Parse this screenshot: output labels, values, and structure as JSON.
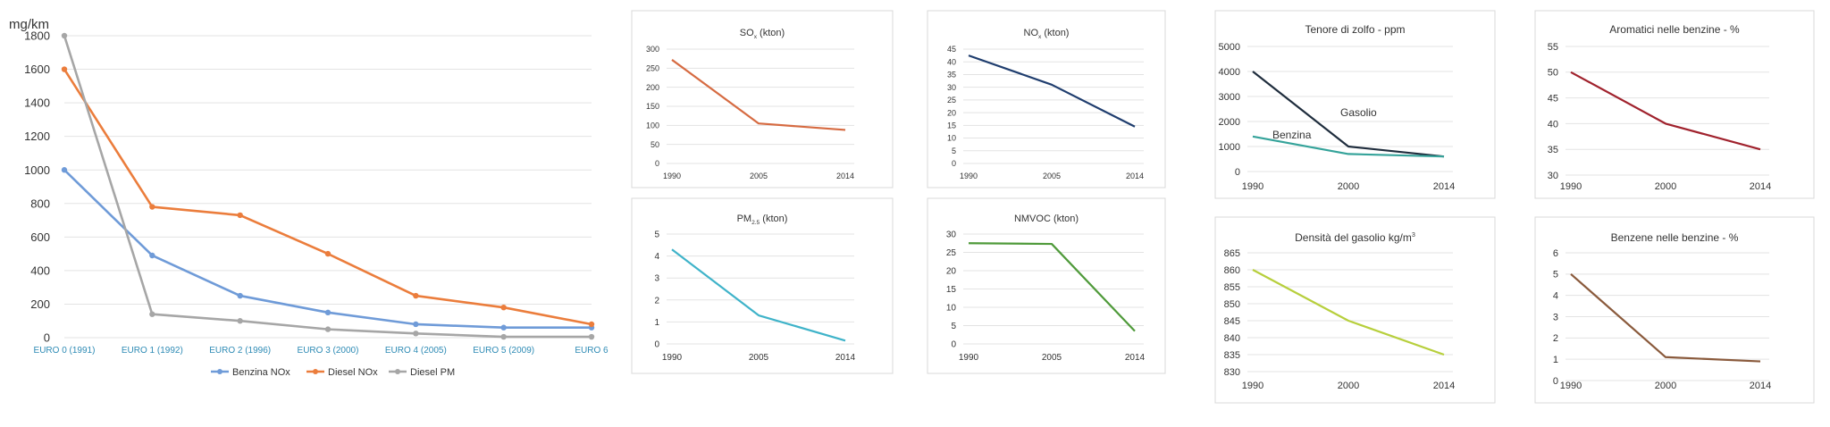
{
  "chart_data": [
    {
      "id": "euro",
      "type": "line",
      "title": "",
      "ylabel": "mg/km",
      "ylim": [
        0,
        1800
      ],
      "yticks": [
        0,
        200,
        400,
        600,
        800,
        1000,
        1200,
        1400,
        1600,
        1800
      ],
      "categories": [
        "EURO 0 (1991)",
        "EURO 1 (1992)",
        "EURO 2 (1996)",
        "EURO 3 (2000)",
        "EURO 4 (2005)",
        "EURO 5 (2009)",
        "EURO 6"
      ],
      "legend_position": "bottom",
      "grid": true,
      "series": [
        {
          "name": "Benzina NOx",
          "color": "#6f9bd8",
          "values": [
            1000,
            490,
            250,
            150,
            80,
            60,
            60
          ]
        },
        {
          "name": "Diesel NOx",
          "color": "#eb7d3c",
          "values": [
            1600,
            780,
            730,
            500,
            250,
            180,
            80
          ]
        },
        {
          "name": "Diesel PM",
          "color": "#a6a6a6",
          "values": [
            1800,
            140,
            100,
            50,
            25,
            5,
            5
          ]
        }
      ]
    },
    {
      "id": "so",
      "type": "line",
      "title": "SO",
      "title_sub": "x",
      "title_suffix": " (kton)",
      "ylim": [
        0,
        300
      ],
      "yticks": [
        0,
        50,
        100,
        150,
        200,
        250,
        300
      ],
      "categories": [
        "1990",
        "2005",
        "2014"
      ],
      "grid": true,
      "series": [
        {
          "color": "#d66b42",
          "values": [
            272,
            105,
            88
          ]
        }
      ]
    },
    {
      "id": "no",
      "type": "line",
      "title": "NO",
      "title_sub": "x",
      "title_suffix": " (kton)",
      "ylim": [
        0,
        45
      ],
      "yticks": [
        0,
        5,
        10,
        15,
        20,
        25,
        30,
        35,
        40,
        45
      ],
      "categories": [
        "1990",
        "2005",
        "2014"
      ],
      "grid": true,
      "series": [
        {
          "color": "#1f3d6e",
          "values": [
            42.5,
            31,
            14.5
          ]
        }
      ]
    },
    {
      "id": "pm",
      "type": "line",
      "title": "PM",
      "title_sub": "2.5",
      "title_suffix": " (kton)",
      "ylim": [
        0,
        5
      ],
      "yticks": [
        0,
        1,
        2,
        3,
        4,
        5
      ],
      "categories": [
        "1990",
        "2005",
        "2014"
      ],
      "grid": true,
      "series": [
        {
          "color": "#3fb3c9",
          "values": [
            4.3,
            1.3,
            0.15
          ]
        }
      ]
    },
    {
      "id": "nmvoc",
      "type": "line",
      "title": "NMVOC (kton)",
      "ylim": [
        0,
        30
      ],
      "yticks": [
        0,
        5,
        10,
        15,
        20,
        25,
        30
      ],
      "categories": [
        "1990",
        "2005",
        "2014"
      ],
      "grid": true,
      "series": [
        {
          "color": "#4f9a3a",
          "values": [
            27.5,
            27.3,
            3.5
          ]
        }
      ]
    },
    {
      "id": "zolfo",
      "type": "line",
      "title": "Tenore di zolfo - ppm",
      "ylim": [
        0,
        5000
      ],
      "yticks": [
        0,
        1000,
        2000,
        3000,
        4000,
        5000
      ],
      "categories": [
        "1990",
        "2000",
        "2014"
      ],
      "grid": true,
      "series": [
        {
          "name": "Gasolio",
          "color": "#1f2d3d",
          "values": [
            4000,
            1000,
            600
          ]
        },
        {
          "name": "Benzina",
          "color": "#35a39a",
          "values": [
            1400,
            700,
            600
          ]
        }
      ]
    },
    {
      "id": "aromatici",
      "type": "line",
      "title": "Aromatici nelle benzine - %",
      "ylim": [
        30,
        55
      ],
      "yticks": [
        30,
        35,
        40,
        45,
        50,
        55
      ],
      "categories": [
        "1990",
        "2000",
        "2014"
      ],
      "grid": true,
      "series": [
        {
          "color": "#a0222d",
          "values": [
            50,
            40,
            35
          ]
        }
      ]
    },
    {
      "id": "densita",
      "type": "line",
      "title": "Densità del gasolio kg/m",
      "title_sup": "3",
      "ylim": [
        830,
        865
      ],
      "yticks": [
        830,
        835,
        840,
        845,
        850,
        855,
        860,
        865
      ],
      "categories": [
        "1990",
        "2000",
        "2014"
      ],
      "grid": true,
      "series": [
        {
          "color": "#b7cf3c",
          "values": [
            860,
            845,
            835
          ]
        }
      ]
    },
    {
      "id": "benzene",
      "type": "line",
      "title": "Benzene nelle benzine - %",
      "ylim": [
        0,
        6
      ],
      "yticks": [
        0,
        1,
        2,
        3,
        4,
        5,
        6
      ],
      "categories": [
        "1990",
        "2000",
        "2014"
      ],
      "grid": true,
      "series": [
        {
          "color": "#8a5a3c",
          "values": [
            5,
            1.1,
            0.9
          ]
        }
      ]
    }
  ]
}
